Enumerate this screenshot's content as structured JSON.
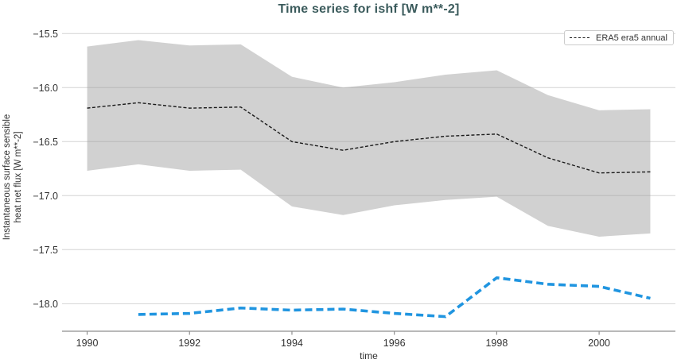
{
  "chart_data": {
    "type": "line",
    "title": "Time series for ishf [W m**-2]",
    "xlabel": "time",
    "ylabel_lines": [
      "Instantaneous surface sensible",
      "heat net flux [W m**-2]"
    ],
    "xlim": [
      1989.51,
      2001.49
    ],
    "ylim": [
      -18.255,
      -15.395
    ],
    "xticks": [
      1990,
      1992,
      1994,
      1996,
      1998,
      2000
    ],
    "yticks": [
      -15.5,
      -16.0,
      -16.5,
      -17.0,
      -17.5,
      -18.0
    ],
    "grid": true,
    "legend": {
      "position": "upper right",
      "entries": [
        {
          "label": "ERA5 era5 annual",
          "color": "#1a1a1a",
          "style": "dashed"
        }
      ]
    },
    "series": [
      {
        "name": "ERA5 era5 annual",
        "style": "dashed-thin",
        "color": "#1a1a1a",
        "x": [
          1990,
          1991,
          1992,
          1993,
          1994,
          1995,
          1996,
          1997,
          1998,
          1999,
          2000,
          2001
        ],
        "y": [
          -16.19,
          -16.14,
          -16.19,
          -16.18,
          -16.5,
          -16.58,
          -16.5,
          -16.45,
          -16.43,
          -16.65,
          -16.79,
          -16.78
        ],
        "band": {
          "color": "#999999",
          "opacity": 0.45,
          "upper": [
            -15.62,
            -15.56,
            -15.61,
            -15.6,
            -15.9,
            -16.0,
            -15.95,
            -15.88,
            -15.84,
            -16.07,
            -16.21,
            -16.2
          ],
          "lower": [
            -16.77,
            -16.71,
            -16.77,
            -16.76,
            -17.1,
            -17.18,
            -17.09,
            -17.04,
            -17.01,
            -17.28,
            -17.38,
            -17.35
          ]
        }
      },
      {
        "name": "",
        "style": "dashed-bold",
        "color": "#2095e0",
        "x": [
          1991,
          1992,
          1993,
          1994,
          1995,
          1996,
          1997,
          1998,
          1999,
          2000,
          2001
        ],
        "y": [
          -18.1,
          -18.09,
          -18.04,
          -18.06,
          -18.05,
          -18.09,
          -18.12,
          -17.76,
          -17.82,
          -17.84,
          -17.95
        ]
      }
    ],
    "colors": {
      "grid": "#d4d4d4",
      "spine": "#8f8f8f",
      "tick_label": "#333333",
      "title": "#3b5b5c",
      "background": "#ffffff"
    }
  }
}
